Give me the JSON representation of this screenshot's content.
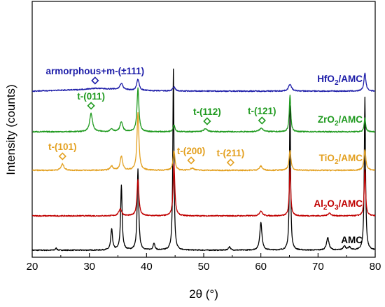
{
  "chart_data": {
    "type": "line",
    "xlabel": "2θ (°)",
    "ylabel": "Intensity (counts)",
    "xlim": [
      20,
      80
    ],
    "x_ticks": [
      20,
      30,
      40,
      50,
      60,
      70,
      80
    ],
    "y_ticks_shown": false,
    "legend": "inline labels to the right of each curve",
    "series": [
      {
        "name": "AMC",
        "name_main": "AMC",
        "name_sub": "",
        "name_suffix": "",
        "color": "#000000",
        "offset": 0,
        "noise": 0.7,
        "baseline": [
          [
            20,
            3
          ],
          [
            80,
            3
          ]
        ],
        "peaks": [
          [
            24.2,
            3,
            0.15
          ],
          [
            33.9,
            30,
            0.18
          ],
          [
            35.6,
            92,
            0.16
          ],
          [
            38.5,
            115,
            0.16
          ],
          [
            41.3,
            10,
            0.18
          ],
          [
            44.7,
            258,
            0.12
          ],
          [
            54.5,
            5,
            0.2
          ],
          [
            60.0,
            40,
            0.22
          ],
          [
            65.1,
            206,
            0.12
          ],
          [
            71.7,
            18,
            0.25
          ],
          [
            74.6,
            6,
            0.25
          ],
          [
            75.5,
            4,
            0.25
          ],
          [
            78.2,
            218,
            0.13
          ]
        ]
      },
      {
        "name": "Al2O3/AMC",
        "name_main": "Al",
        "name_sub": "2",
        "name_suffix": "O₃/AMC",
        "color": "#c00000",
        "offset": 52,
        "noise": 0.8,
        "baseline": [
          [
            20,
            0
          ],
          [
            80,
            0
          ]
        ],
        "peaks": [
          [
            35.4,
            10,
            0.3
          ],
          [
            38.5,
            52,
            0.2
          ],
          [
            44.8,
            74,
            0.18
          ],
          [
            60.0,
            7,
            0.3
          ],
          [
            65.1,
            68,
            0.15
          ],
          [
            72.0,
            4,
            0.3
          ],
          [
            78.2,
            66,
            0.15
          ]
        ]
      },
      {
        "name": "TiO2/AMC",
        "name_main": "TiO",
        "name_sub": "2",
        "name_suffix": "/AMC",
        "color": "#e3a020",
        "offset": 117,
        "noise": 0.8,
        "baseline": [
          [
            20,
            0
          ],
          [
            80,
            0
          ]
        ],
        "peaks": [
          [
            25.3,
            9,
            0.3
          ],
          [
            33.9,
            6,
            0.3
          ],
          [
            35.6,
            20,
            0.25
          ],
          [
            38.5,
            82,
            0.2
          ],
          [
            44.8,
            28,
            0.2
          ],
          [
            48.0,
            3,
            0.4
          ],
          [
            60.0,
            6,
            0.3
          ],
          [
            65.1,
            28,
            0.2
          ],
          [
            78.2,
            30,
            0.2
          ]
        ]
      },
      {
        "name": "ZrO2/AMC",
        "name_main": "ZrO",
        "name_sub": "2",
        "name_suffix": "/AMC",
        "color": "#1f9a1f",
        "offset": 172,
        "noise": 0.8,
        "baseline": [
          [
            20,
            0
          ],
          [
            80,
            0
          ]
        ],
        "peaks": [
          [
            30.3,
            26,
            0.3
          ],
          [
            33.9,
            4,
            0.3
          ],
          [
            35.6,
            14,
            0.28
          ],
          [
            38.5,
            62,
            0.2
          ],
          [
            44.8,
            10,
            0.2
          ],
          [
            50.3,
            4,
            0.4
          ],
          [
            60.1,
            5,
            0.4
          ],
          [
            65.1,
            53,
            0.15
          ],
          [
            78.2,
            20,
            0.15
          ]
        ]
      },
      {
        "name": "HfO2/AMC",
        "name_main": "HfO",
        "name_sub": "2",
        "name_suffix": "/AMC",
        "color": "#1c1ca8",
        "offset": 230,
        "noise": 0.8,
        "baseline": [
          [
            20,
            0
          ],
          [
            28,
            2
          ],
          [
            31,
            4
          ],
          [
            34,
            3
          ],
          [
            38,
            1
          ],
          [
            45,
            0
          ],
          [
            80,
            0
          ]
        ],
        "peaks": [
          [
            35.6,
            9,
            0.3
          ],
          [
            38.5,
            16,
            0.25
          ],
          [
            44.8,
            6,
            0.25
          ],
          [
            65.1,
            10,
            0.3
          ],
          [
            78.2,
            26,
            0.2
          ]
        ]
      }
    ],
    "annotations": [
      {
        "text": "armorphous+m-(±111)",
        "x": 31.0,
        "series": 4,
        "color": "#1c1ca8"
      },
      {
        "text": "t-(011)",
        "x": 30.3,
        "series": 3,
        "color": "#1f9a1f"
      },
      {
        "text": "t-(112)",
        "x": 50.6,
        "series": 3,
        "color": "#1f9a1f"
      },
      {
        "text": "t-(121)",
        "x": 60.2,
        "series": 3,
        "color": "#1f9a1f"
      },
      {
        "text": "t-(101)",
        "x": 25.3,
        "series": 2,
        "color": "#e3a020"
      },
      {
        "text": "t-(200)",
        "x": 47.8,
        "series": 2,
        "color": "#e3a020"
      },
      {
        "text": "t-(211)",
        "x": 54.7,
        "series": 2,
        "color": "#e3a020"
      }
    ]
  }
}
